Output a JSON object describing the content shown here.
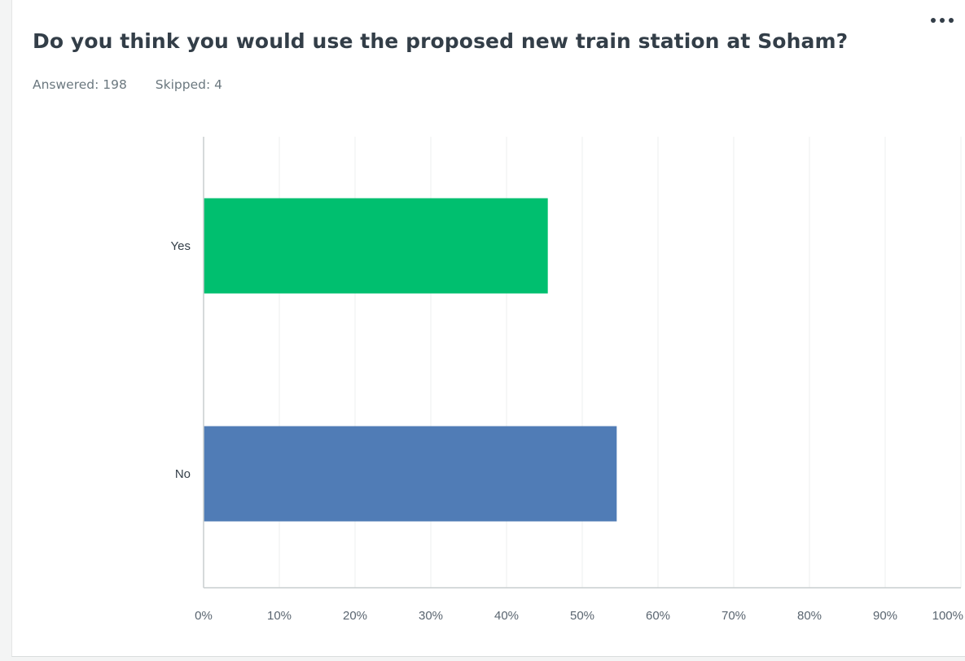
{
  "question": {
    "title": "Do you think you would use the proposed new train station at Soham?",
    "answered_label": "Answered: 198",
    "skipped_label": "Skipped: 4"
  },
  "menu": {
    "icon": "more-horizontal-icon"
  },
  "colors": {
    "yes_bar": "#00bf6f",
    "no_bar": "#507cb6",
    "gridline": "#ecefef",
    "axis": "#c9cdcf"
  },
  "chart_data": {
    "type": "bar",
    "orientation": "horizontal",
    "categories": [
      "Yes",
      "No"
    ],
    "values": [
      45.45,
      54.55
    ],
    "colors": [
      "#00bf6f",
      "#507cb6"
    ],
    "xlim": [
      0,
      100
    ],
    "xticks": [
      "0%",
      "10%",
      "20%",
      "30%",
      "40%",
      "50%",
      "60%",
      "70%",
      "80%",
      "90%",
      "100%"
    ],
    "grid": true,
    "legend": "none"
  }
}
